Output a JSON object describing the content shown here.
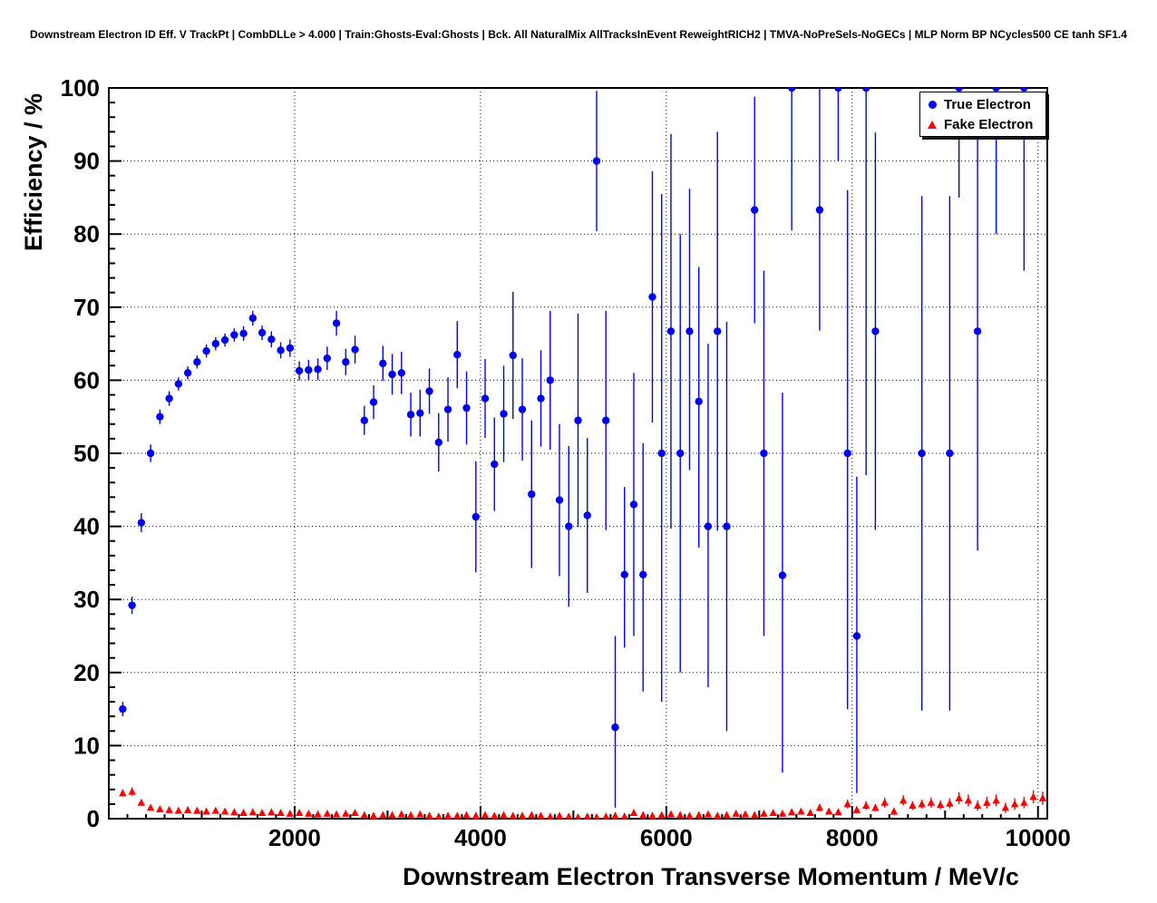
{
  "title": "Downstream Electron ID Eff. V TrackPt | CombDLLe > 4.000 | Train:Ghosts-Eval:Ghosts | Bck. All NaturalMix AllTracksInEvent ReweightRICH2 | TMVA-NoPreSels-NoGECs | MLP Norm BP NCycles500 CE tanh SF1.4",
  "chart_data": {
    "type": "scatter",
    "title": "Downstream Electron ID Eff. V TrackPt | CombDLLe > 4.000 | Train:Ghosts-Eval:Ghosts | Bck. All NaturalMix AllTracksInEvent ReweightRICH2 | TMVA-NoPreSels-NoGECs | MLP Norm BP NCycles500 CE tanh SF1.4",
    "xlabel": "Downstream Electron Transverse Momentum / MeV/c",
    "ylabel": "Efficiency / %",
    "xlim": [
      0,
      10100
    ],
    "ylim": [
      0,
      100
    ],
    "grid": true,
    "grid_style": "dotted",
    "legend_position": "top-right",
    "x_major_ticks": [
      2000,
      4000,
      6000,
      8000,
      10000
    ],
    "y_major_ticks": [
      0,
      10,
      20,
      30,
      40,
      50,
      60,
      70,
      80,
      90,
      100
    ],
    "x_minor_step": 200,
    "y_minor_step": 2,
    "series": [
      {
        "name": "True Electron",
        "marker": "circle",
        "color": "#0000f0",
        "points": [
          [
            150,
            15.0,
            1.0,
            1.0
          ],
          [
            250,
            29.2,
            1.2,
            1.2
          ],
          [
            350,
            40.5,
            1.3,
            1.3
          ],
          [
            450,
            50.0,
            1.2,
            1.2
          ],
          [
            550,
            55.0,
            1.0,
            1.0
          ],
          [
            650,
            57.5,
            1.0,
            1.0
          ],
          [
            750,
            59.5,
            0.9,
            0.9
          ],
          [
            850,
            61.0,
            0.9,
            0.9
          ],
          [
            950,
            62.5,
            0.9,
            0.9
          ],
          [
            1050,
            64.0,
            0.9,
            0.9
          ],
          [
            1150,
            65.0,
            0.9,
            0.9
          ],
          [
            1250,
            65.5,
            0.9,
            0.9
          ],
          [
            1350,
            66.2,
            0.9,
            0.9
          ],
          [
            1450,
            66.4,
            1.0,
            1.0
          ],
          [
            1550,
            68.5,
            1.0,
            1.0
          ],
          [
            1650,
            66.5,
            1.0,
            1.0
          ],
          [
            1750,
            65.6,
            1.1,
            1.1
          ],
          [
            1850,
            64.1,
            1.1,
            1.1
          ],
          [
            1950,
            64.4,
            1.2,
            1.2
          ],
          [
            2050,
            61.3,
            1.3,
            1.3
          ],
          [
            2150,
            61.4,
            1.4,
            1.4
          ],
          [
            2250,
            61.5,
            1.5,
            1.5
          ],
          [
            2350,
            63.0,
            1.6,
            1.6
          ],
          [
            2450,
            67.8,
            1.7,
            1.7
          ],
          [
            2550,
            62.5,
            1.8,
            1.8
          ],
          [
            2650,
            64.2,
            1.9,
            1.9
          ],
          [
            2750,
            54.5,
            2.0,
            2.0
          ],
          [
            2850,
            57.0,
            2.3,
            2.3
          ],
          [
            2950,
            62.3,
            2.4,
            2.4
          ],
          [
            3050,
            60.8,
            2.8,
            2.8
          ],
          [
            3150,
            61.0,
            2.9,
            2.9
          ],
          [
            3250,
            55.3,
            3.0,
            3.0
          ],
          [
            3350,
            55.5,
            3.2,
            3.2
          ],
          [
            3450,
            58.5,
            3.1,
            3.1
          ],
          [
            3550,
            51.5,
            4.0,
            4.0
          ],
          [
            3650,
            56.0,
            4.4,
            4.4
          ],
          [
            3750,
            63.5,
            4.6,
            4.6
          ],
          [
            3850,
            56.2,
            5.0,
            5.0
          ],
          [
            3950,
            41.3,
            7.6,
            7.6
          ],
          [
            4050,
            57.5,
            5.4,
            5.4
          ],
          [
            4150,
            48.5,
            6.4,
            6.4
          ],
          [
            4250,
            55.4,
            6.6,
            6.6
          ],
          [
            4350,
            63.4,
            8.7,
            8.7
          ],
          [
            4450,
            56.0,
            7.0,
            7.0
          ],
          [
            4550,
            44.4,
            10.1,
            10.1
          ],
          [
            4650,
            57.5,
            6.6,
            6.6
          ],
          [
            4750,
            60.0,
            9.5,
            9.5
          ],
          [
            4850,
            43.6,
            10.4,
            10.4
          ],
          [
            4950,
            40.0,
            11.0,
            11.0
          ],
          [
            5050,
            54.5,
            14.6,
            14.6
          ],
          [
            5150,
            41.5,
            10.6,
            10.6
          ],
          [
            5250,
            90.0,
            9.6,
            9.6
          ],
          [
            5350,
            54.5,
            15.0,
            15.0
          ],
          [
            5450,
            12.5,
            11.0,
            12.5
          ],
          [
            5550,
            33.4,
            10.0,
            12.0
          ],
          [
            5650,
            43.0,
            18.0,
            18.0
          ],
          [
            5750,
            33.4,
            16.0,
            18.0
          ],
          [
            5850,
            71.4,
            17.2,
            17.2
          ],
          [
            5950,
            50.0,
            34.0,
            35.5
          ],
          [
            6050,
            66.7,
            27.0,
            27.0
          ],
          [
            6150,
            50.0,
            30.0,
            30.0
          ],
          [
            6250,
            66.7,
            19.0,
            19.5
          ],
          [
            6350,
            57.1,
            20.0,
            18.4
          ],
          [
            6450,
            40.0,
            22.0,
            25.0
          ],
          [
            6550,
            66.7,
            27.3,
            27.3
          ],
          [
            6650,
            40.0,
            28.0,
            28.0
          ],
          [
            6950,
            83.3,
            15.5,
            15.5
          ],
          [
            7050,
            50.0,
            25.0,
            25.0
          ],
          [
            7250,
            33.3,
            27.0,
            25.0
          ],
          [
            7350,
            100.0,
            19.5,
            0.0
          ],
          [
            7650,
            83.3,
            16.5,
            16.7
          ],
          [
            7850,
            100.0,
            10.0,
            0.0
          ],
          [
            7950,
            50.0,
            35.0,
            36.0
          ],
          [
            8050,
            25.0,
            21.5,
            21.8
          ],
          [
            8150,
            100.0,
            53.0,
            0.0
          ],
          [
            8250,
            66.7,
            27.2,
            27.2
          ],
          [
            8750,
            50.0,
            35.2,
            35.2
          ],
          [
            9050,
            50.0,
            35.2,
            35.2
          ],
          [
            9150,
            100.0,
            15.0,
            0.0
          ],
          [
            9350,
            66.7,
            30.0,
            28.5
          ],
          [
            9550,
            100.0,
            20.0,
            0.0
          ],
          [
            9850,
            100.0,
            25.0,
            0.0
          ]
        ]
      },
      {
        "name": "Fake Electron",
        "marker": "triangle",
        "color": "#ff0000",
        "points": [
          [
            150,
            3.5,
            0.5
          ],
          [
            250,
            3.7,
            0.6
          ],
          [
            350,
            2.2,
            0.4
          ],
          [
            450,
            1.5,
            0.3
          ],
          [
            550,
            1.3,
            0.3
          ],
          [
            650,
            1.2,
            0.2
          ],
          [
            750,
            1.1,
            0.2
          ],
          [
            850,
            1.2,
            0.2
          ],
          [
            950,
            1.1,
            0.2
          ],
          [
            1050,
            1.0,
            0.2
          ],
          [
            1150,
            1.1,
            0.2
          ],
          [
            1250,
            1.0,
            0.2
          ],
          [
            1350,
            0.9,
            0.2
          ],
          [
            1450,
            0.8,
            0.2
          ],
          [
            1550,
            0.9,
            0.2
          ],
          [
            1650,
            0.8,
            0.2
          ],
          [
            1750,
            0.9,
            0.2
          ],
          [
            1850,
            0.8,
            0.2
          ],
          [
            1950,
            0.7,
            0.2
          ],
          [
            2050,
            0.8,
            0.2
          ],
          [
            2150,
            0.7,
            0.2
          ],
          [
            2250,
            0.6,
            0.2
          ],
          [
            2350,
            0.7,
            0.2
          ],
          [
            2450,
            0.6,
            0.2
          ],
          [
            2550,
            0.7,
            0.2
          ],
          [
            2650,
            0.8,
            0.2
          ],
          [
            2750,
            0.5,
            0.2
          ],
          [
            2850,
            0.4,
            0.1
          ],
          [
            2950,
            0.5,
            0.2
          ],
          [
            3050,
            0.5,
            0.2
          ],
          [
            3150,
            0.6,
            0.2
          ],
          [
            3250,
            0.5,
            0.2
          ],
          [
            3350,
            0.6,
            0.2
          ],
          [
            3450,
            0.4,
            0.1
          ],
          [
            3550,
            0.3,
            0.1
          ],
          [
            3650,
            0.4,
            0.1
          ],
          [
            3750,
            0.4,
            0.1
          ],
          [
            3850,
            0.5,
            0.2
          ],
          [
            3950,
            0.4,
            0.2
          ],
          [
            4050,
            0.5,
            0.2
          ],
          [
            4150,
            0.4,
            0.2
          ],
          [
            4250,
            0.5,
            0.2
          ],
          [
            4350,
            0.4,
            0.2
          ],
          [
            4450,
            0.4,
            0.2
          ],
          [
            4550,
            0.5,
            0.2
          ],
          [
            4650,
            0.4,
            0.2
          ],
          [
            4750,
            0.3,
            0.1
          ],
          [
            4850,
            0.4,
            0.2
          ],
          [
            4950,
            0.3,
            0.1
          ],
          [
            5050,
            0.2,
            0.1
          ],
          [
            5150,
            0.3,
            0.1
          ],
          [
            5250,
            0.2,
            0.1
          ],
          [
            5350,
            0.3,
            0.2
          ],
          [
            5450,
            0.4,
            0.2
          ],
          [
            5550,
            0.3,
            0.2
          ],
          [
            5650,
            0.8,
            0.3
          ],
          [
            5750,
            0.5,
            0.2
          ],
          [
            5850,
            0.4,
            0.2
          ],
          [
            5950,
            0.5,
            0.2
          ],
          [
            6050,
            0.6,
            0.3
          ],
          [
            6150,
            0.5,
            0.2
          ],
          [
            6250,
            0.4,
            0.2
          ],
          [
            6350,
            0.5,
            0.3
          ],
          [
            6450,
            0.6,
            0.3
          ],
          [
            6550,
            0.4,
            0.2
          ],
          [
            6650,
            0.5,
            0.3
          ],
          [
            6750,
            0.7,
            0.3
          ],
          [
            6850,
            0.6,
            0.3
          ],
          [
            6950,
            0.5,
            0.3
          ],
          [
            7050,
            0.7,
            0.3
          ],
          [
            7150,
            0.8,
            0.4
          ],
          [
            7250,
            0.7,
            0.3
          ],
          [
            7350,
            0.9,
            0.4
          ],
          [
            7450,
            1.0,
            0.4
          ],
          [
            7550,
            0.8,
            0.4
          ],
          [
            7650,
            1.5,
            0.5
          ],
          [
            7750,
            1.0,
            0.4
          ],
          [
            7850,
            0.9,
            0.4
          ],
          [
            7950,
            2.0,
            0.6
          ],
          [
            8050,
            1.2,
            0.5
          ],
          [
            8150,
            1.8,
            0.6
          ],
          [
            8250,
            1.5,
            0.5
          ],
          [
            8350,
            2.2,
            0.7
          ],
          [
            8450,
            1.0,
            0.5
          ],
          [
            8550,
            2.5,
            0.7
          ],
          [
            8650,
            1.8,
            0.6
          ],
          [
            8750,
            2.0,
            0.6
          ],
          [
            8850,
            2.2,
            0.7
          ],
          [
            8950,
            1.9,
            0.6
          ],
          [
            9050,
            2.1,
            0.7
          ],
          [
            9150,
            2.8,
            0.8
          ],
          [
            9250,
            2.5,
            0.8
          ],
          [
            9350,
            1.8,
            0.7
          ],
          [
            9450,
            2.2,
            0.8
          ],
          [
            9550,
            2.5,
            0.8
          ],
          [
            9650,
            1.5,
            0.7
          ],
          [
            9750,
            2.0,
            0.8
          ],
          [
            9850,
            2.2,
            0.8
          ],
          [
            9950,
            3.0,
            0.9
          ],
          [
            10050,
            2.8,
            0.9
          ]
        ]
      }
    ]
  }
}
